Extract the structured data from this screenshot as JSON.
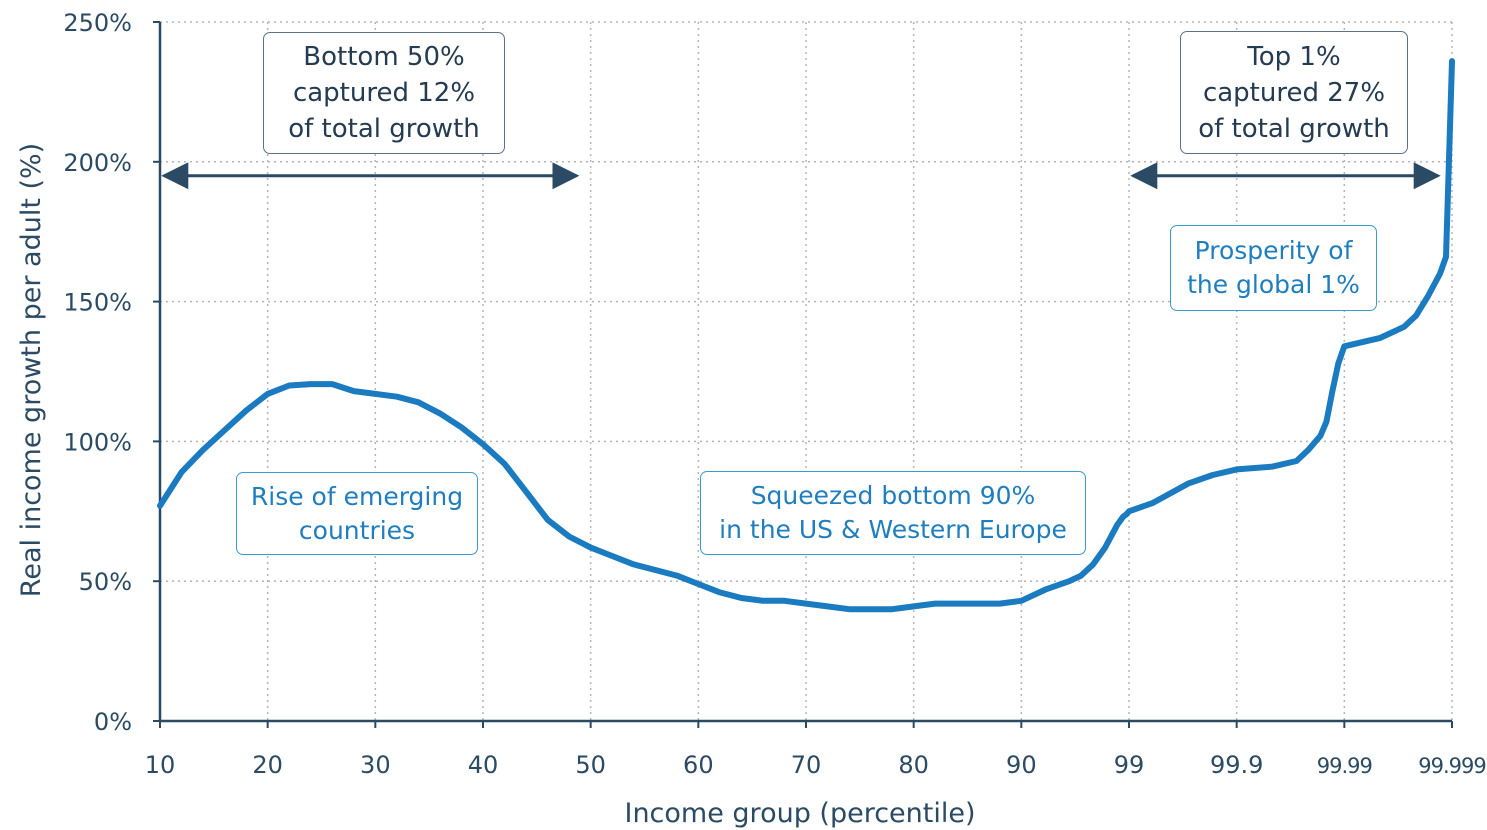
{
  "chart_data": {
    "type": "line",
    "xlabel": "Income group (percentile)",
    "ylabel": "Real income growth per adult (%)",
    "ylim": [
      0,
      250
    ],
    "yticks": [
      "0%",
      "50%",
      "100%",
      "150%",
      "200%",
      "250%"
    ],
    "xticks": [
      "10",
      "20",
      "30",
      "40",
      "50",
      "60",
      "70",
      "80",
      "90",
      "99",
      "99.9",
      "99.99",
      "99.999"
    ],
    "grid": true,
    "series": [
      {
        "color": "#1b7bc0",
        "x": [
          10,
          12,
          14,
          16,
          18,
          20,
          22,
          24,
          26,
          28,
          30,
          32,
          34,
          36,
          38,
          40,
          42,
          44,
          46,
          48,
          50,
          52,
          54,
          56,
          58,
          60,
          62,
          64,
          66,
          68,
          70,
          72,
          74,
          76,
          78,
          80,
          82,
          84,
          86,
          88,
          90,
          92,
          94,
          95,
          96,
          97,
          98,
          98.5,
          98.8,
          99,
          99.2,
          99.5,
          99.7,
          99.9,
          99.93,
          99.95,
          99.96,
          99.97,
          99.975,
          99.98,
          99.985,
          99.99,
          99.993,
          99.995,
          99.996,
          99.997,
          99.998,
          99.9985,
          99.999
        ],
        "y": [
          77,
          89,
          97,
          104,
          111,
          117,
          120,
          120.5,
          120.5,
          118,
          117,
          116,
          114,
          110,
          105,
          99,
          92,
          82,
          72,
          66,
          62,
          59,
          56,
          54,
          52,
          49,
          46,
          44,
          43,
          43,
          42,
          41,
          40,
          40,
          40,
          41,
          42,
          42,
          42,
          42,
          43,
          47,
          50,
          52,
          56,
          62,
          70,
          73,
          74,
          75,
          78,
          85,
          88,
          90,
          91,
          93,
          97,
          102,
          107,
          118,
          128,
          134,
          137,
          141,
          145,
          152,
          160,
          166,
          236
        ]
      }
    ],
    "annotations": [
      {
        "text": "Bottom 50%\ncaptured 12%\nof total growth",
        "arrow_from": 10,
        "arrow_to": 50
      },
      {
        "text": "Top 1%\ncaptured 27%\nof total growth",
        "arrow_from": 99,
        "arrow_to": 99.999
      },
      {
        "text": "Rise of emerging\ncountries"
      },
      {
        "text": "Squeezed bottom 90%\nin the US & Western Europe"
      },
      {
        "text": "Prosperity of\nthe global 1%"
      }
    ]
  }
}
